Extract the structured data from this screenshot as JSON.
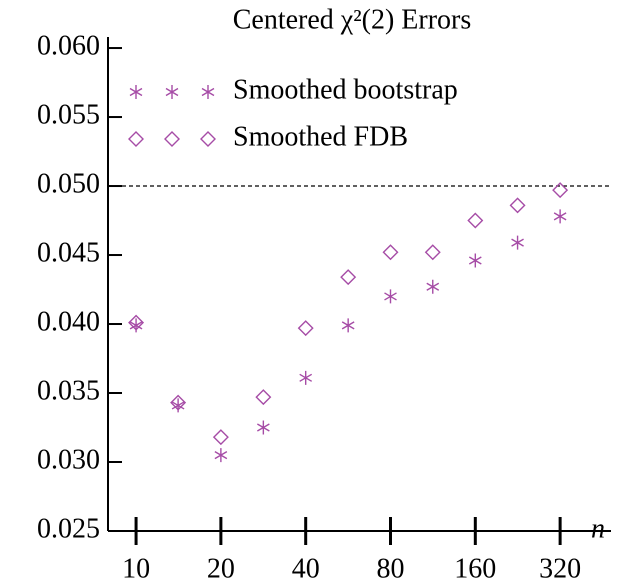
{
  "chart_data": {
    "type": "scatter",
    "title": "Centered χ²(2) Errors",
    "x_label": "n",
    "log_x": true,
    "xlim": [
      7.95,
      485
    ],
    "xticks": [
      10,
      20,
      40,
      80,
      160,
      320
    ],
    "ylim": [
      0.025,
      0.0608
    ],
    "yticks": [
      0.025,
      {
        "value": 0.03,
        "label": "0.030"
      },
      0.035,
      {
        "value": 0.04,
        "label": "0.040"
      },
      0.045,
      {
        "value": 0.05,
        "label": "0.050"
      },
      0.055,
      {
        "value": 0.06,
        "label": "0.060"
      }
    ],
    "hline": 0.05,
    "legend": "upper left",
    "x": [
      10,
      14.1,
      20,
      28.3,
      40,
      56.6,
      80,
      113,
      160,
      226,
      320
    ],
    "series": [
      {
        "name": "Smoothed bootstrap",
        "color": "#a64ca6",
        "marker": "asterisk",
        "values": [
          0.0399,
          0.0341,
          0.0305,
          0.0325,
          0.0361,
          0.0399,
          0.042,
          0.0427,
          0.0446,
          0.0459,
          0.0478
        ]
      },
      {
        "name": "Smoothed FDB",
        "color": "#a64ca6",
        "marker": "diamond",
        "values": [
          0.0401,
          0.0343,
          0.0318,
          0.0347,
          0.0397,
          0.0434,
          0.0452,
          0.0452,
          0.0475,
          0.0486,
          0.0497
        ]
      }
    ]
  }
}
